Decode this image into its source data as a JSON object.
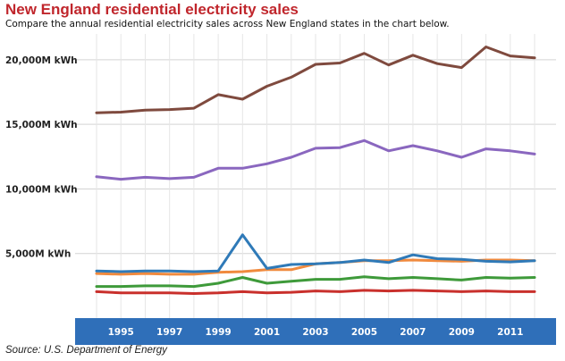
{
  "header": {
    "title": "New England residential electricity sales",
    "subtitle": "Compare the annual residential electricity sales across New England states in the chart below."
  },
  "footer": {
    "source": "Source: U.S. Department of Energy"
  },
  "chart_data": {
    "type": "line",
    "title": "New England residential electricity sales",
    "xlabel": "",
    "ylabel": "",
    "x": [
      1994,
      1995,
      1996,
      1997,
      1998,
      1999,
      2000,
      2001,
      2002,
      2003,
      2004,
      2005,
      2006,
      2007,
      2008,
      2009,
      2010,
      2011,
      2012
    ],
    "x_tick_labels": [
      "1995",
      "1997",
      "1999",
      "2001",
      "2003",
      "2005",
      "2007",
      "2009",
      "2011"
    ],
    "x_tick_values": [
      1995,
      1997,
      1999,
      2001,
      2003,
      2005,
      2007,
      2009,
      2011
    ],
    "y_ticks": [
      5000,
      10000,
      15000,
      20000
    ],
    "y_tick_labels": [
      "5,000M kWh",
      "10,000M kWh",
      "15,000M kWh",
      "20,000M kWh"
    ],
    "ylim": [
      0,
      22000
    ],
    "grid": true,
    "legend": "none",
    "axis_band_color": "#2f6fb9",
    "series": [
      {
        "color": "#7f4a3e",
        "values": [
          15900,
          15950,
          16100,
          16150,
          16250,
          17300,
          16950,
          17950,
          18650,
          19650,
          19750,
          20500,
          19600,
          20350,
          19700,
          19400,
          21000,
          20300,
          20150
        ]
      },
      {
        "color": "#8a67bf",
        "values": [
          10950,
          10750,
          10900,
          10800,
          10900,
          11600,
          11600,
          11950,
          12450,
          13150,
          13200,
          13750,
          12950,
          13350,
          12950,
          12450,
          13100,
          12950,
          12700
        ]
      },
      {
        "color": "#f08a3e",
        "values": [
          3450,
          3400,
          3450,
          3400,
          3400,
          3550,
          3600,
          3750,
          3750,
          4200,
          4300,
          4450,
          4450,
          4500,
          4450,
          4400,
          4500,
          4500,
          4450
        ]
      },
      {
        "color": "#2f7ab8",
        "values": [
          3650,
          3600,
          3650,
          3650,
          3600,
          3650,
          6450,
          3850,
          4150,
          4200,
          4300,
          4500,
          4300,
          4900,
          4600,
          4550,
          4400,
          4350,
          4450
        ]
      },
      {
        "color": "#3e9a3a",
        "values": [
          2450,
          2450,
          2500,
          2500,
          2450,
          2700,
          3150,
          2700,
          2850,
          3000,
          3000,
          3200,
          3050,
          3150,
          3050,
          2950,
          3150,
          3100,
          3150
        ]
      },
      {
        "color": "#c9302c",
        "values": [
          2050,
          1950,
          1950,
          1950,
          1900,
          1950,
          2050,
          1950,
          2000,
          2100,
          2050,
          2150,
          2100,
          2150,
          2100,
          2050,
          2100,
          2050,
          2050
        ]
      }
    ]
  }
}
